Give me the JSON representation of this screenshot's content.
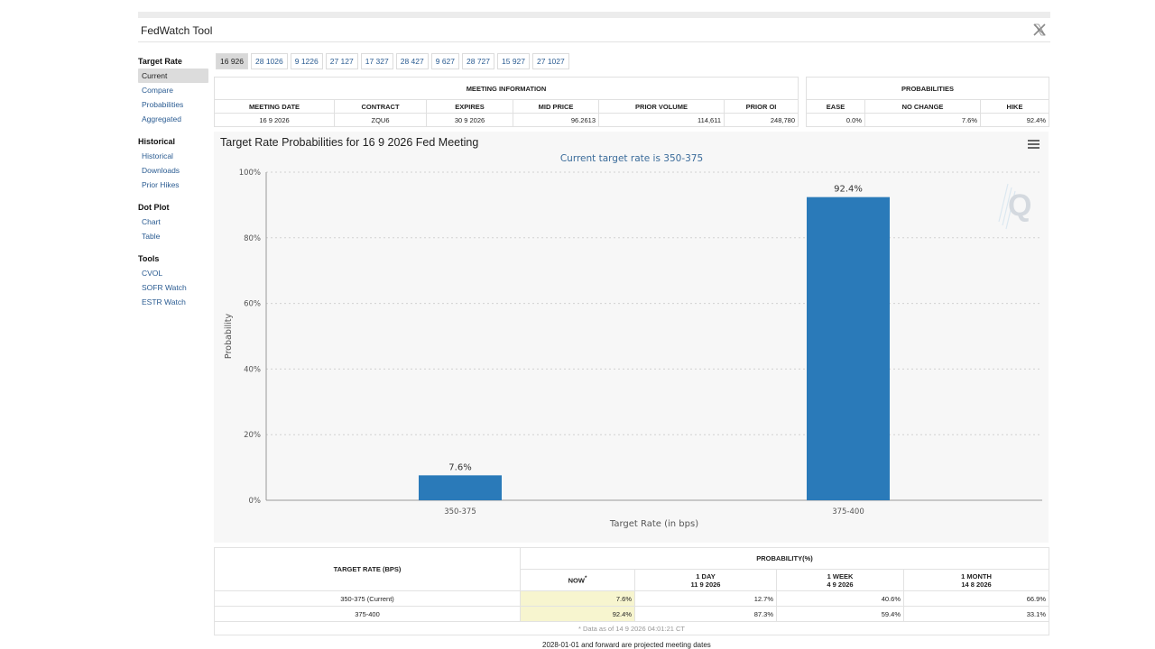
{
  "app": {
    "title": "FedWatch Tool"
  },
  "sidebar": {
    "sections": [
      {
        "title": "Target Rate",
        "items": [
          {
            "label": "Current"
          },
          {
            "label": "Compare"
          },
          {
            "label": "Probabilities"
          },
          {
            "label": "Aggregated"
          }
        ]
      },
      {
        "title": "Historical",
        "items": [
          {
            "label": "Historical"
          },
          {
            "label": "Downloads"
          },
          {
            "label": "Prior Hikes"
          }
        ]
      },
      {
        "title": "Dot Plot",
        "items": [
          {
            "label": "Chart"
          },
          {
            "label": "Table"
          }
        ]
      },
      {
        "title": "Tools",
        "items": [
          {
            "label": "CVOL"
          },
          {
            "label": "SOFR Watch"
          },
          {
            "label": "ESTR Watch"
          }
        ]
      }
    ],
    "active_item": "Current"
  },
  "date_tabs": [
    "16 926",
    "28 1026",
    "9 1226",
    "27 127",
    "17 327",
    "28 427",
    "9 627",
    "28 727",
    "15 927",
    "27 1027"
  ],
  "active_tab": "16 926",
  "meeting_info": {
    "group_title": "MEETING INFORMATION",
    "headers": [
      "MEETING DATE",
      "CONTRACT",
      "EXPIRES",
      "MID PRICE",
      "PRIOR VOLUME",
      "PRIOR OI"
    ],
    "row": [
      "16 9 2026",
      "ZQU6",
      "30 9 2026",
      "96.2613",
      "114,611",
      "248,780"
    ]
  },
  "probabilities": {
    "group_title": "PROBABILITIES",
    "headers": [
      "EASE",
      "NO CHANGE",
      "HIKE"
    ],
    "row": [
      "0.0%",
      "7.6%",
      "92.4%"
    ]
  },
  "chart_data": {
    "type": "bar",
    "title": "Target Rate Probabilities for 16 9 2026 Fed Meeting",
    "subtitle": "Current target rate is 350-375",
    "xlabel": "Target Rate (in bps)",
    "ylabel": "Probability",
    "categories": [
      "350-375",
      "375-400"
    ],
    "values": [
      7.6,
      92.4
    ],
    "data_labels": [
      "7.6%",
      "92.4%"
    ],
    "ylim": [
      0,
      100
    ],
    "yticks": [
      "0%",
      "20%",
      "40%",
      "60%",
      "80%",
      "100%"
    ],
    "grid": true,
    "bar_color": "#2a7ab9",
    "subtitle_color": "#3a6b9a"
  },
  "prob_table": {
    "col_header": "TARGET RATE (BPS)",
    "group_header": "PROBABILITY(%)",
    "columns": [
      {
        "label": "NOW",
        "sub": "",
        "mark": "*"
      },
      {
        "label": "1 DAY",
        "sub": "11 9 2026",
        "mark": ""
      },
      {
        "label": "1 WEEK",
        "sub": "4 9 2026",
        "mark": ""
      },
      {
        "label": "1 MONTH",
        "sub": "14 8 2026",
        "mark": ""
      }
    ],
    "rows": [
      {
        "rate": "350-375 (Current)",
        "values": [
          "7.6%",
          "12.7%",
          "40.6%",
          "66.9%"
        ]
      },
      {
        "rate": "375-400",
        "values": [
          "92.4%",
          "87.3%",
          "59.4%",
          "33.1%"
        ]
      }
    ],
    "note": "* Data as of 14 9 2026 04:01:21 CT"
  },
  "footer_note": "2028-01-01 and forward are projected meeting dates",
  "icons": {
    "close": "x-logo-icon",
    "menu": "hamburger-menu-icon",
    "watermark": "q-logo-icon"
  }
}
